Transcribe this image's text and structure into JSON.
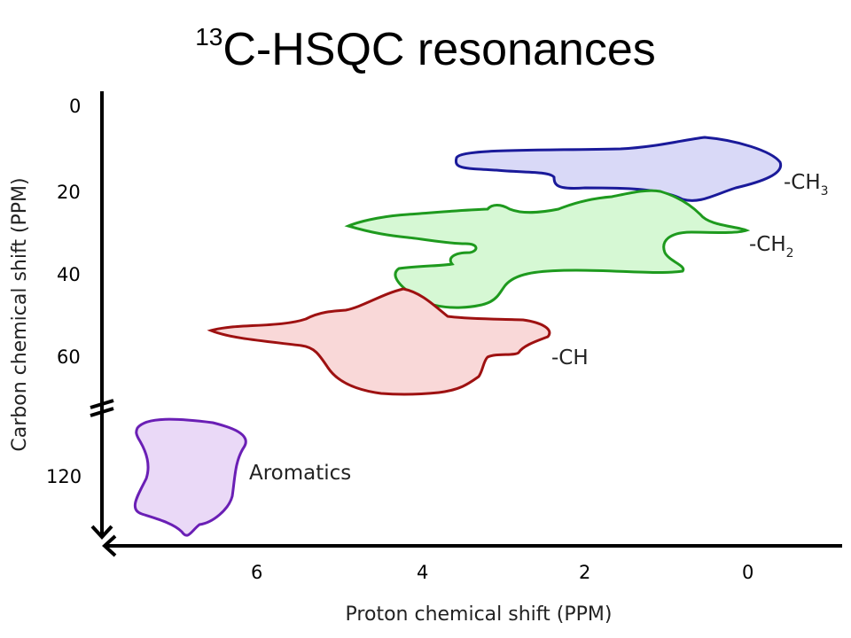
{
  "title": {
    "sup": "13",
    "main": "C-HSQC resonances"
  },
  "axes": {
    "x_label": "Proton chemical shift (PPM)",
    "y_label": "Carbon chemical shift (PPM)",
    "x_ticks": [
      "6",
      "4",
      "2",
      "0"
    ],
    "y_ticks": [
      "0",
      "20",
      "40",
      "60",
      "120"
    ]
  },
  "regions": {
    "ch3": {
      "label": "-CH",
      "subscript": "3",
      "fill": "#d9d9f7",
      "stroke": "#1a1a9a"
    },
    "ch2": {
      "label": "-CH",
      "subscript": "2",
      "fill": "#d6f8d4",
      "stroke": "#1e9a1e"
    },
    "ch": {
      "label": "-CH",
      "fill": "#f9d8d8",
      "stroke": "#9e1111"
    },
    "aromatics": {
      "label": "Aromatics",
      "fill": "#ead9f7",
      "stroke": "#6a1fb5"
    }
  }
}
